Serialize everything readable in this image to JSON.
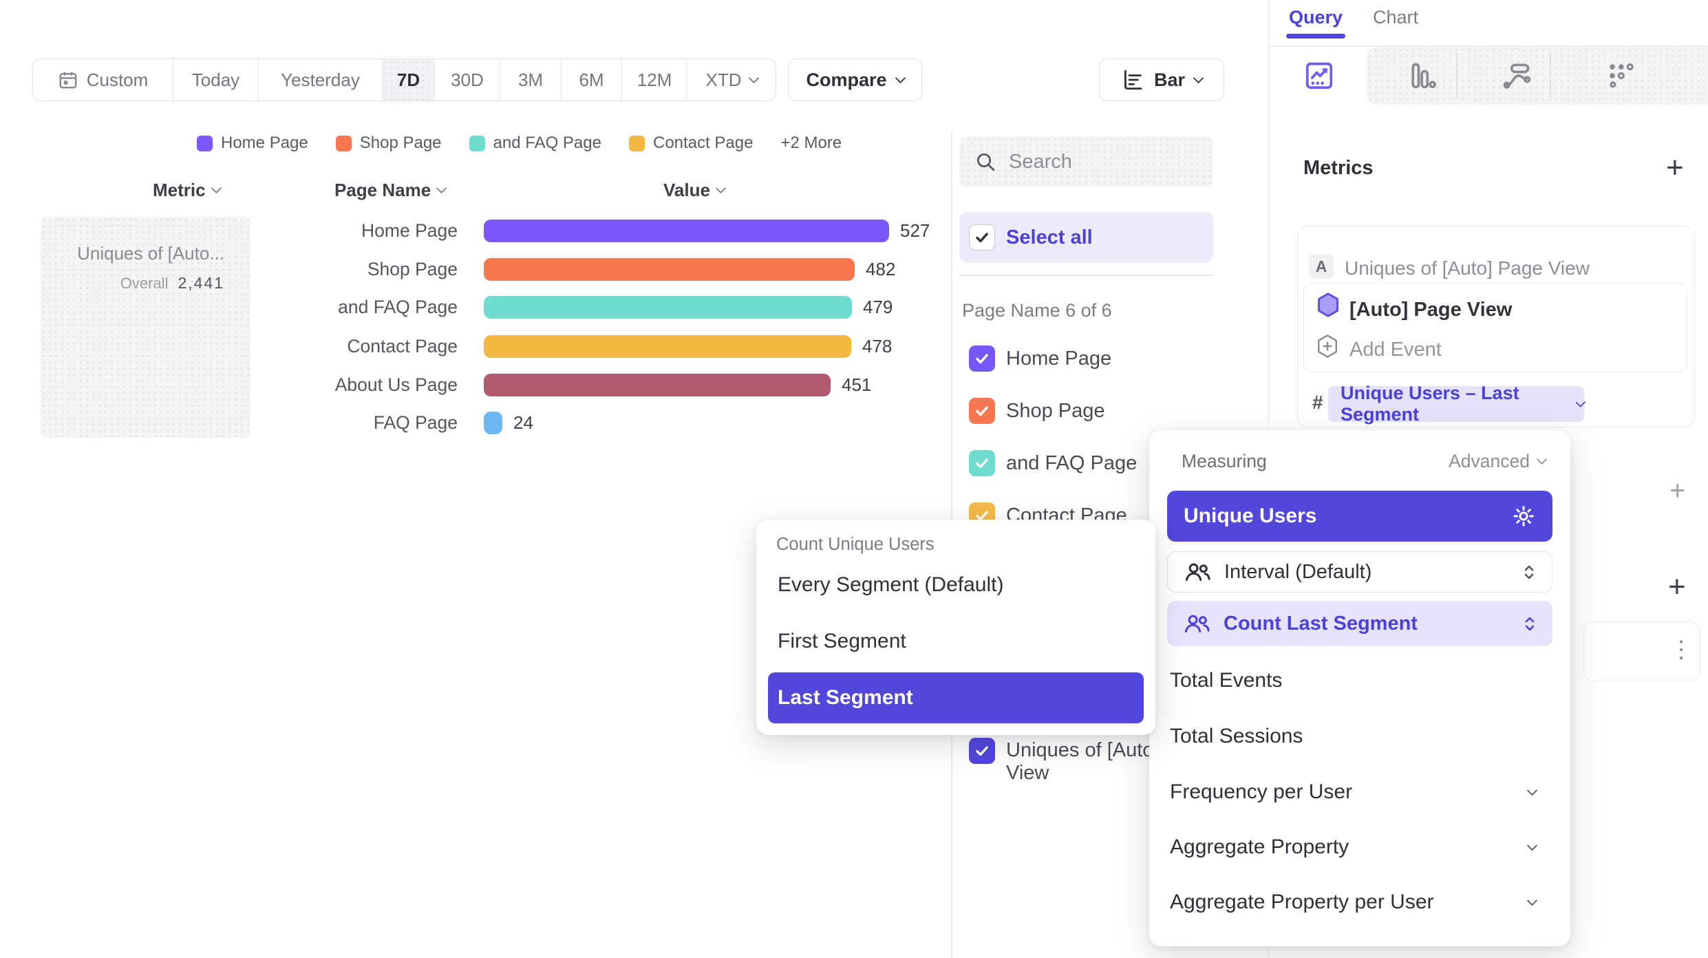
{
  "colors": {
    "accent": "#5246DB",
    "accent_light_bg": "#E7E3FB",
    "pill_bg": "#E6E2FA",
    "select_all_bg": "#EDEAFA"
  },
  "icons": {
    "add": "+",
    "kebab": "⋮"
  },
  "toolbar": {
    "date_ranges": [
      "Custom",
      "Today",
      "Yesterday",
      "7D",
      "30D",
      "3M",
      "6M",
      "12M",
      "XTD"
    ],
    "selected_range": "7D",
    "compare_label": "Compare",
    "chart_type_label": "Bar"
  },
  "legend": {
    "more_label": "+2 More"
  },
  "chart_data": {
    "type": "bar",
    "orientation": "horizontal",
    "metric": "Uniques of [Auto] Page View",
    "categories": [
      "Home Page",
      "Shop Page",
      "and FAQ Page",
      "Contact Page",
      "About Us Page",
      "FAQ Page"
    ],
    "values": [
      527,
      482,
      479,
      478,
      451,
      24
    ],
    "colors": [
      "#7A58FB",
      "#F87650",
      "#6FDCCF",
      "#F3B841",
      "#B25B70",
      "#6FB7F0"
    ],
    "overall_label": "Overall",
    "overall_value": "2,441",
    "xlim": [
      0,
      527
    ],
    "legend_visible": [
      "Home Page",
      "Shop Page",
      "and FAQ Page",
      "Contact Page"
    ]
  },
  "table": {
    "columns": [
      "Metric",
      "Page Name",
      "Value"
    ],
    "metric_cell": {
      "title": "Uniques of [Auto...",
      "overall_label": "Overall",
      "overall_value": "2,441"
    }
  },
  "filter_panel": {
    "search_placeholder": "Search",
    "select_all_label": "Select all",
    "group_label": "Page Name 6 of 6",
    "items": [
      {
        "label": "Home Page",
        "color": "#7657F8",
        "checked": true
      },
      {
        "label": "Shop Page",
        "color": "#F87650",
        "checked": true
      },
      {
        "label": "and FAQ Page",
        "color": "#70DCCF",
        "checked": true
      },
      {
        "label": "Contact Page",
        "color": "#F4BA45",
        "checked": true
      }
    ],
    "partial_item": {
      "line1": "Uniques of [Auto",
      "line2": "View",
      "color": "#5246DB",
      "checked": true
    }
  },
  "right_panel": {
    "tabs": [
      {
        "label": "Query",
        "active": true
      },
      {
        "label": "Chart",
        "active": false
      }
    ],
    "metrics_heading": "Metrics",
    "metric_card": {
      "badge": "A",
      "title": "Uniques of [Auto] Page View",
      "event_name": "[Auto] Page View",
      "add_event_label": "Add Event",
      "hash": "#",
      "measure_pill": "Unique Users – Last Segment"
    }
  },
  "measuring_popover": {
    "title": "Measuring",
    "advanced_label": "Advanced",
    "selected_option": "Unique Users",
    "interval_label": "Interval (Default)",
    "count_segment_label": "Count Last Segment",
    "options": [
      "Total Events",
      "Total Sessions",
      "Frequency per User",
      "Aggregate Property",
      "Aggregate Property per User"
    ]
  },
  "segment_popover": {
    "title": "Count Unique Users",
    "options": [
      "Every Segment (Default)",
      "First Segment",
      "Last Segment"
    ],
    "selected": "Last Segment"
  }
}
